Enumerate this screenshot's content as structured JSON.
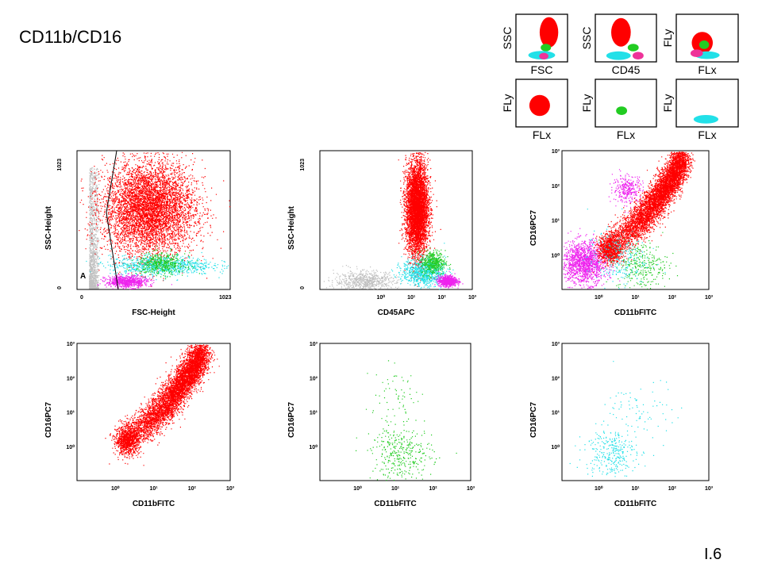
{
  "slide": {
    "title": "CD11b/CD16",
    "number": "I.6"
  },
  "colors": {
    "gray": "#c0c0c0",
    "red": "#ff0000",
    "green": "#22cc22",
    "cyan": "#22e0e8",
    "magenta": "#ee22ee",
    "pink": "#ee3399"
  },
  "legend_panels": [
    {
      "xlabel": "FSC",
      "ylabel": "SSC"
    },
    {
      "xlabel": "CD45",
      "ylabel": "SSC"
    },
    {
      "xlabel": "FLx",
      "ylabel": "FLy"
    },
    {
      "xlabel": "FLx",
      "ylabel": "FLy"
    },
    {
      "xlabel": "FLx",
      "ylabel": "FLy"
    },
    {
      "xlabel": "FLx",
      "ylabel": "FLy"
    }
  ],
  "chart_data": [
    {
      "type": "scatter",
      "scale": "linear",
      "xlabel": "FSC-Height",
      "ylabel": "SSC-Height",
      "xlim": [
        0,
        1023
      ],
      "ylim": [
        0,
        1023
      ],
      "x_ticks": [
        "0",
        "1023"
      ],
      "y_ticks": [
        "0",
        "1023"
      ],
      "gate_label": "A",
      "populations": [
        {
          "color": "gray",
          "n": 1400,
          "x": [
            80,
            150
          ],
          "y": [
            10,
            900
          ]
        },
        {
          "color": "red",
          "n": 6000,
          "center": [
            480,
            600
          ],
          "spread": [
            150,
            170
          ]
        },
        {
          "color": "cyan",
          "n": 900,
          "center": [
            560,
            180
          ],
          "spread": [
            170,
            35
          ]
        },
        {
          "color": "green",
          "n": 450,
          "center": [
            560,
            190
          ],
          "spread": [
            80,
            40
          ]
        },
        {
          "color": "magenta",
          "n": 700,
          "center": [
            330,
            60
          ],
          "spread": [
            70,
            22
          ]
        }
      ]
    },
    {
      "type": "scatter",
      "scale": "log-x",
      "xlabel": "CD45APC",
      "ylabel": "SSC-Height",
      "xlim": [
        0.01,
        1000
      ],
      "ylim": [
        0,
        1023
      ],
      "x_ticks": [
        "10⁰",
        "10¹",
        "10²",
        "10³"
      ],
      "y_ticks": [
        "0",
        "1023"
      ],
      "populations": [
        {
          "color": "gray",
          "n": 700,
          "center": [
            0.3,
            60
          ],
          "spread": [
            0.5,
            40
          ]
        },
        {
          "color": "red",
          "n": 6500,
          "center": [
            15,
            600
          ],
          "spread": [
            0.18,
            170
          ]
        },
        {
          "color": "cyan",
          "n": 900,
          "center": [
            25,
            130
          ],
          "spread": [
            0.35,
            50
          ]
        },
        {
          "color": "green",
          "n": 450,
          "center": [
            50,
            200
          ],
          "spread": [
            0.2,
            45
          ]
        },
        {
          "color": "magenta",
          "n": 700,
          "center": [
            150,
            65
          ],
          "spread": [
            0.15,
            20
          ]
        }
      ]
    },
    {
      "type": "scatter",
      "scale": "log",
      "xlabel": "CD11bFITC",
      "ylabel": "CD16PC7",
      "xlim": [
        0.1,
        1000
      ],
      "ylim": [
        0.1,
        1000
      ],
      "x_ticks": [
        "10⁰",
        "10¹",
        "10²",
        "10³"
      ],
      "y_ticks": [
        "10⁰",
        "10¹",
        "10²",
        "10³"
      ],
      "populations": [
        {
          "color": "magenta",
          "n": 1500,
          "center": [
            0.4,
            0.6
          ],
          "spread": [
            0.3,
            0.3
          ]
        },
        {
          "color": "magenta",
          "n": 300,
          "center": [
            6,
            80
          ],
          "spread": [
            0.2,
            0.2
          ]
        },
        {
          "color": "red",
          "n": 5500,
          "trend": {
            "x": [
              1,
              200
            ],
            "y": [
              1.5,
              600
            ]
          },
          "spread": [
            0.12,
            0.25
          ]
        },
        {
          "color": "red",
          "n": 900,
          "center": [
            2,
            1.5
          ],
          "spread": [
            0.15,
            0.2
          ]
        },
        {
          "color": "green",
          "n": 300,
          "center": [
            15,
            0.5
          ],
          "spread": [
            0.35,
            0.35
          ]
        },
        {
          "color": "cyan",
          "n": 250,
          "center": [
            3,
            0.8
          ],
          "spread": [
            0.4,
            0.4
          ]
        }
      ]
    },
    {
      "type": "scatter",
      "scale": "log",
      "xlabel": "CD11bFITC",
      "ylabel": "CD16PC7",
      "xlim": [
        0.1,
        1000
      ],
      "ylim": [
        0.1,
        1000
      ],
      "x_ticks": [
        "10⁰",
        "10¹",
        "10²",
        "10³"
      ],
      "y_ticks": [
        "10⁰",
        "10¹",
        "10²",
        "10³"
      ],
      "populations": [
        {
          "color": "red",
          "n": 5500,
          "trend": {
            "x": [
              1,
              200
            ],
            "y": [
              1.5,
              600
            ]
          },
          "spread": [
            0.12,
            0.25
          ]
        },
        {
          "color": "red",
          "n": 900,
          "center": [
            2,
            1.5
          ],
          "spread": [
            0.15,
            0.2
          ]
        }
      ]
    },
    {
      "type": "scatter",
      "scale": "log",
      "xlabel": "CD11bFITC",
      "ylabel": "CD16PC7",
      "xlim": [
        0.1,
        1000
      ],
      "ylim": [
        0.1,
        1000
      ],
      "x_ticks": [
        "10⁰",
        "10¹",
        "10²",
        "10³"
      ],
      "y_ticks": [
        "10⁰",
        "10¹",
        "10²",
        "10³"
      ],
      "populations": [
        {
          "color": "green",
          "n": 350,
          "center": [
            15,
            0.6
          ],
          "spread": [
            0.4,
            0.4
          ]
        },
        {
          "color": "green",
          "n": 60,
          "center": [
            10,
            30
          ],
          "spread": [
            0.4,
            0.4
          ]
        }
      ]
    },
    {
      "type": "scatter",
      "scale": "log",
      "xlabel": "CD11bFITC",
      "ylabel": "CD16PC7",
      "xlim": [
        0.1,
        1000
      ],
      "ylim": [
        0.1,
        1000
      ],
      "x_ticks": [
        "10⁰",
        "10¹",
        "10²",
        "10³"
      ],
      "y_ticks": [
        "10⁰",
        "10¹",
        "10²",
        "10³"
      ],
      "populations": [
        {
          "color": "cyan",
          "n": 300,
          "center": [
            2,
            0.7
          ],
          "spread": [
            0.35,
            0.35
          ]
        },
        {
          "color": "cyan",
          "n": 80,
          "center": [
            15,
            10
          ],
          "spread": [
            0.5,
            0.5
          ]
        }
      ]
    }
  ]
}
